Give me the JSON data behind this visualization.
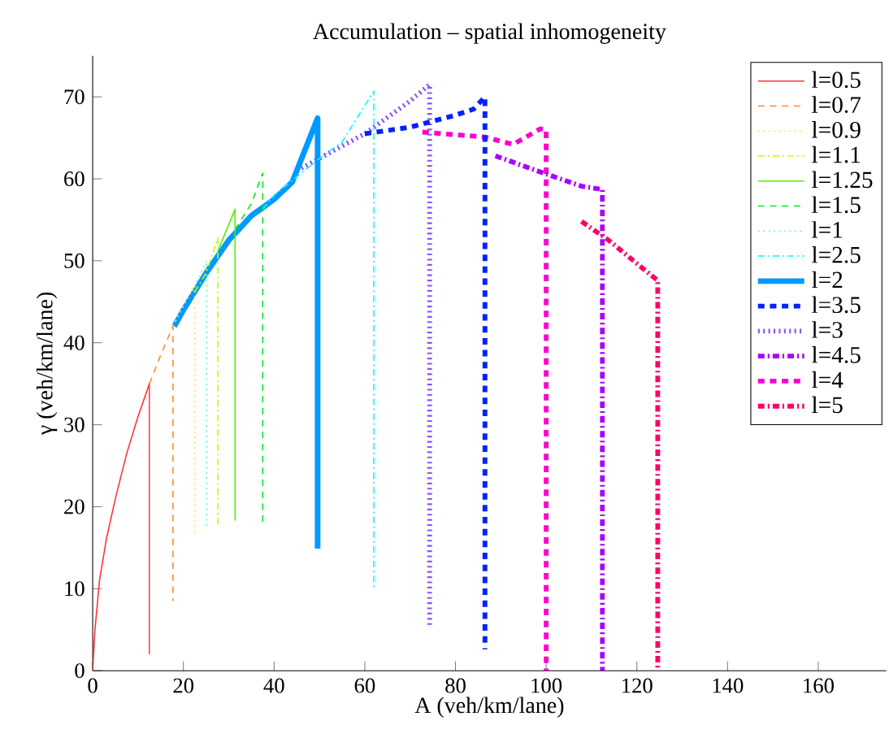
{
  "chart_data": {
    "type": "line",
    "title": "Accumulation – spatial inhomogeneity",
    "xlabel": "A (veh/km/lane)",
    "ylabel": "γ (veh/km/lane)",
    "xlim": [
      0,
      175
    ],
    "ylim": [
      0,
      75
    ],
    "xticks": [
      0,
      20,
      40,
      60,
      80,
      100,
      120,
      140,
      160
    ],
    "yticks": [
      0,
      10,
      20,
      30,
      40,
      50,
      60,
      70
    ],
    "grid": false,
    "legend": "top right",
    "marker": "none",
    "series": [
      {
        "name": "l=0.5",
        "color": "#ff3333",
        "line_style": "solid",
        "x": [
          0,
          0.5,
          1.5,
          3,
          5,
          7.5,
          10,
          12.5,
          12.5
        ],
        "values": [
          0,
          5,
          11,
          16,
          21,
          26.5,
          31,
          35,
          2
        ]
      },
      {
        "name": "l=0.7",
        "color": "#ff8833",
        "line_style": "dashed",
        "x": [
          12.5,
          15,
          17.7,
          17.7
        ],
        "values": [
          35,
          38.5,
          42,
          8.5
        ]
      },
      {
        "name": "l=0.9",
        "color": "#ffe066",
        "line_style": "dotted",
        "x": [
          17.7,
          20,
          22.5,
          22.5
        ],
        "values": [
          42,
          44.5,
          47,
          16.5
        ]
      },
      {
        "name": "l=1.1",
        "color": "#bbff00",
        "line_style": "dashdot",
        "x": [
          22.5,
          25,
          27.6,
          27.6
        ],
        "values": [
          46.2,
          48.5,
          52.8,
          17.8
        ]
      },
      {
        "name": "l=1.25",
        "color": "#55ee00",
        "line_style": "solid",
        "x": [
          27.6,
          31.4,
          31.4
        ],
        "values": [
          51.2,
          56.3,
          18.3
        ]
      },
      {
        "name": "l=1.5",
        "color": "#00ee22",
        "line_style": "dashed",
        "x": [
          31.4,
          35,
          37.5,
          37.5
        ],
        "values": [
          53.8,
          57,
          60.7,
          18
        ]
      },
      {
        "name": "l=1",
        "color": "#66ffcc",
        "line_style": "dotted",
        "x": [
          22,
          25.1,
          25.1
        ],
        "values": [
          46.3,
          50,
          17.5
        ]
      },
      {
        "name": "l=2.5",
        "color": "#00ffff",
        "line_style": "dashdot",
        "x": [
          37.5,
          40,
          50,
          55,
          62,
          62
        ],
        "values": [
          56.3,
          58,
          62.5,
          64.5,
          70.7,
          9.9
        ]
      },
      {
        "name": "l=2",
        "color": "#0099ff",
        "line_style": "solid",
        "x": [
          18,
          20,
          25,
          30,
          35,
          40,
          44,
          49.6,
          49.6
        ],
        "values": [
          42,
          44,
          48.5,
          52.5,
          55.5,
          57.5,
          59.6,
          67.4,
          14.9
        ]
      },
      {
        "name": "l=3.5",
        "color": "#0022ff",
        "line_style": "dashed",
        "x": [
          60,
          70,
          79.6,
          84,
          86.5,
          86.5
        ],
        "values": [
          65.5,
          66.3,
          67.7,
          68.5,
          70,
          2.6
        ]
      },
      {
        "name": "l=3",
        "color": "#8855ff",
        "line_style": "dotted",
        "x": [
          46,
          50,
          55,
          60,
          65,
          70,
          74.3,
          74.3
        ],
        "values": [
          61.3,
          62.5,
          64,
          65.5,
          67.5,
          69.5,
          71.5,
          5.6
        ]
      },
      {
        "name": "l=4.5",
        "color": "#aa00ff",
        "line_style": "dashdot",
        "x": [
          88.8,
          99.4,
          107.8,
          112.4,
          112.4
        ],
        "values": [
          62.8,
          60.7,
          59.1,
          58.7,
          0
        ]
      },
      {
        "name": "l=4",
        "color": "#ff00cc",
        "line_style": "dashed",
        "x": [
          72.7,
          86.5,
          92.7,
          98.7,
          100,
          100
        ],
        "values": [
          65.7,
          65.1,
          64.2,
          66.1,
          66,
          0
        ]
      },
      {
        "name": "l=5",
        "color": "#ff0066",
        "line_style": "dashdot",
        "x": [
          107.8,
          113.8,
          121,
          124.6,
          124.6
        ],
        "values": [
          54.8,
          52.5,
          49.2,
          47.6,
          0
        ]
      }
    ]
  }
}
